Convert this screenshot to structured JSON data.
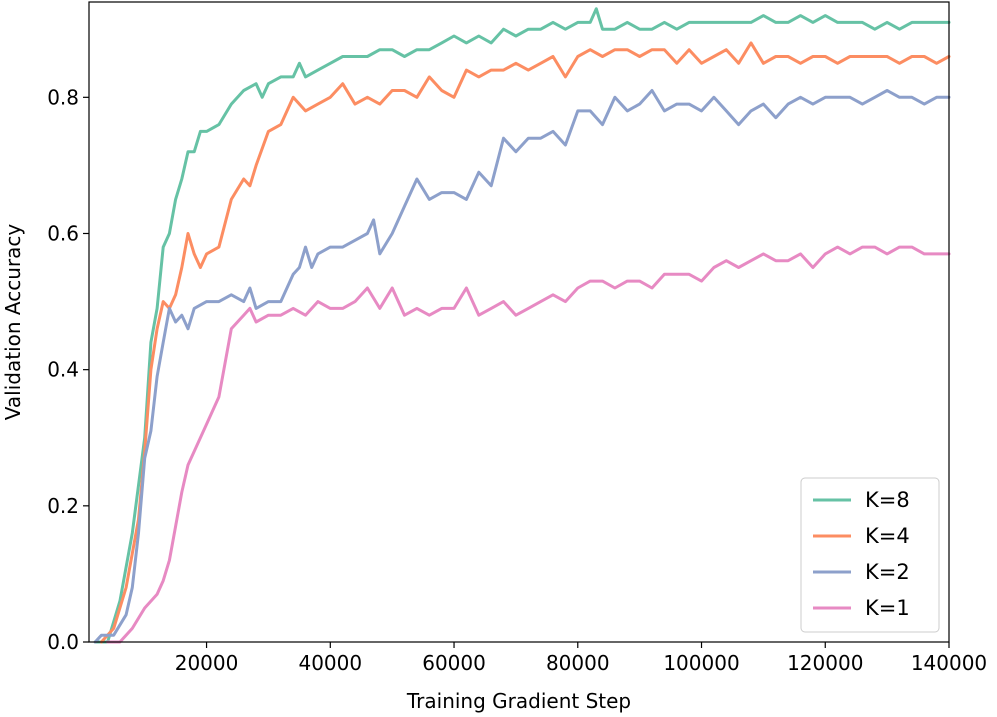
{
  "chart_data": {
    "type": "line",
    "title": "",
    "xlabel": "Training Gradient Step",
    "ylabel": "Validation Accuracy",
    "xlim": [
      1000,
      140000
    ],
    "ylim": [
      0,
      0.94
    ],
    "xticks": [
      20000,
      40000,
      60000,
      80000,
      100000,
      120000,
      140000
    ],
    "xtick_labels": [
      "20000",
      "40000",
      "60000",
      "80000",
      "100000",
      "120000",
      "140000"
    ],
    "yticks": [
      0.0,
      0.2,
      0.4,
      0.6,
      0.8
    ],
    "ytick_labels": [
      "0.0",
      "0.2",
      "0.4",
      "0.6",
      "0.8"
    ],
    "grid": false,
    "legend_position": "lower-right",
    "series": [
      {
        "name": "K=8",
        "color": "#66c2a5",
        "points": [
          [
            2000,
            0.0
          ],
          [
            4000,
            0.0
          ],
          [
            6000,
            0.06
          ],
          [
            8000,
            0.16
          ],
          [
            10000,
            0.3
          ],
          [
            11000,
            0.44
          ],
          [
            12000,
            0.49
          ],
          [
            13000,
            0.58
          ],
          [
            14000,
            0.6
          ],
          [
            15000,
            0.65
          ],
          [
            16000,
            0.68
          ],
          [
            17000,
            0.72
          ],
          [
            18000,
            0.72
          ],
          [
            19000,
            0.75
          ],
          [
            20000,
            0.75
          ],
          [
            22000,
            0.76
          ],
          [
            24000,
            0.79
          ],
          [
            26000,
            0.81
          ],
          [
            28000,
            0.82
          ],
          [
            29000,
            0.8
          ],
          [
            30000,
            0.82
          ],
          [
            32000,
            0.83
          ],
          [
            34000,
            0.83
          ],
          [
            35000,
            0.85
          ],
          [
            36000,
            0.83
          ],
          [
            38000,
            0.84
          ],
          [
            40000,
            0.85
          ],
          [
            42000,
            0.86
          ],
          [
            44000,
            0.86
          ],
          [
            46000,
            0.86
          ],
          [
            48000,
            0.87
          ],
          [
            50000,
            0.87
          ],
          [
            52000,
            0.86
          ],
          [
            54000,
            0.87
          ],
          [
            56000,
            0.87
          ],
          [
            58000,
            0.88
          ],
          [
            60000,
            0.89
          ],
          [
            62000,
            0.88
          ],
          [
            64000,
            0.89
          ],
          [
            66000,
            0.88
          ],
          [
            68000,
            0.9
          ],
          [
            70000,
            0.89
          ],
          [
            72000,
            0.9
          ],
          [
            74000,
            0.9
          ],
          [
            76000,
            0.91
          ],
          [
            78000,
            0.9
          ],
          [
            80000,
            0.91
          ],
          [
            82000,
            0.91
          ],
          [
            83000,
            0.93
          ],
          [
            84000,
            0.9
          ],
          [
            86000,
            0.9
          ],
          [
            88000,
            0.91
          ],
          [
            90000,
            0.9
          ],
          [
            92000,
            0.9
          ],
          [
            94000,
            0.91
          ],
          [
            96000,
            0.9
          ],
          [
            98000,
            0.91
          ],
          [
            100000,
            0.91
          ],
          [
            102000,
            0.91
          ],
          [
            104000,
            0.91
          ],
          [
            106000,
            0.91
          ],
          [
            108000,
            0.91
          ],
          [
            110000,
            0.92
          ],
          [
            112000,
            0.91
          ],
          [
            114000,
            0.91
          ],
          [
            116000,
            0.92
          ],
          [
            118000,
            0.91
          ],
          [
            120000,
            0.92
          ],
          [
            122000,
            0.91
          ],
          [
            124000,
            0.91
          ],
          [
            126000,
            0.91
          ],
          [
            128000,
            0.9
          ],
          [
            130000,
            0.91
          ],
          [
            132000,
            0.9
          ],
          [
            134000,
            0.91
          ],
          [
            136000,
            0.91
          ],
          [
            138000,
            0.91
          ],
          [
            140000,
            0.91
          ]
        ]
      },
      {
        "name": "K=4",
        "color": "#fc8d62",
        "points": [
          [
            3000,
            0.0
          ],
          [
            5000,
            0.02
          ],
          [
            7000,
            0.08
          ],
          [
            9000,
            0.18
          ],
          [
            10000,
            0.28
          ],
          [
            11000,
            0.4
          ],
          [
            12000,
            0.46
          ],
          [
            13000,
            0.5
          ],
          [
            14000,
            0.49
          ],
          [
            15000,
            0.51
          ],
          [
            16000,
            0.55
          ],
          [
            17000,
            0.6
          ],
          [
            18000,
            0.57
          ],
          [
            19000,
            0.55
          ],
          [
            20000,
            0.57
          ],
          [
            22000,
            0.58
          ],
          [
            24000,
            0.65
          ],
          [
            26000,
            0.68
          ],
          [
            27000,
            0.67
          ],
          [
            28000,
            0.7
          ],
          [
            30000,
            0.75
          ],
          [
            32000,
            0.76
          ],
          [
            34000,
            0.8
          ],
          [
            36000,
            0.78
          ],
          [
            38000,
            0.79
          ],
          [
            40000,
            0.8
          ],
          [
            42000,
            0.82
          ],
          [
            44000,
            0.79
          ],
          [
            46000,
            0.8
          ],
          [
            48000,
            0.79
          ],
          [
            50000,
            0.81
          ],
          [
            52000,
            0.81
          ],
          [
            54000,
            0.8
          ],
          [
            56000,
            0.83
          ],
          [
            58000,
            0.81
          ],
          [
            60000,
            0.8
          ],
          [
            62000,
            0.84
          ],
          [
            64000,
            0.83
          ],
          [
            66000,
            0.84
          ],
          [
            68000,
            0.84
          ],
          [
            70000,
            0.85
          ],
          [
            72000,
            0.84
          ],
          [
            74000,
            0.85
          ],
          [
            76000,
            0.86
          ],
          [
            78000,
            0.83
          ],
          [
            80000,
            0.86
          ],
          [
            82000,
            0.87
          ],
          [
            84000,
            0.86
          ],
          [
            86000,
            0.87
          ],
          [
            88000,
            0.87
          ],
          [
            90000,
            0.86
          ],
          [
            92000,
            0.87
          ],
          [
            94000,
            0.87
          ],
          [
            96000,
            0.85
          ],
          [
            98000,
            0.87
          ],
          [
            100000,
            0.85
          ],
          [
            102000,
            0.86
          ],
          [
            104000,
            0.87
          ],
          [
            106000,
            0.85
          ],
          [
            108000,
            0.88
          ],
          [
            110000,
            0.85
          ],
          [
            112000,
            0.86
          ],
          [
            114000,
            0.86
          ],
          [
            116000,
            0.85
          ],
          [
            118000,
            0.86
          ],
          [
            120000,
            0.86
          ],
          [
            122000,
            0.85
          ],
          [
            124000,
            0.86
          ],
          [
            126000,
            0.86
          ],
          [
            128000,
            0.86
          ],
          [
            130000,
            0.86
          ],
          [
            132000,
            0.85
          ],
          [
            134000,
            0.86
          ],
          [
            136000,
            0.86
          ],
          [
            138000,
            0.85
          ],
          [
            140000,
            0.86
          ]
        ]
      },
      {
        "name": "K=2",
        "color": "#8da0cb",
        "points": [
          [
            2000,
            0.0
          ],
          [
            3000,
            0.01
          ],
          [
            5000,
            0.01
          ],
          [
            7000,
            0.04
          ],
          [
            8000,
            0.08
          ],
          [
            9000,
            0.16
          ],
          [
            10000,
            0.27
          ],
          [
            11000,
            0.31
          ],
          [
            12000,
            0.39
          ],
          [
            13000,
            0.44
          ],
          [
            14000,
            0.49
          ],
          [
            15000,
            0.47
          ],
          [
            16000,
            0.48
          ],
          [
            17000,
            0.46
          ],
          [
            18000,
            0.49
          ],
          [
            20000,
            0.5
          ],
          [
            22000,
            0.5
          ],
          [
            24000,
            0.51
          ],
          [
            26000,
            0.5
          ],
          [
            27000,
            0.52
          ],
          [
            28000,
            0.49
          ],
          [
            30000,
            0.5
          ],
          [
            32000,
            0.5
          ],
          [
            34000,
            0.54
          ],
          [
            35000,
            0.55
          ],
          [
            36000,
            0.58
          ],
          [
            37000,
            0.55
          ],
          [
            38000,
            0.57
          ],
          [
            40000,
            0.58
          ],
          [
            42000,
            0.58
          ],
          [
            44000,
            0.59
          ],
          [
            46000,
            0.6
          ],
          [
            47000,
            0.62
          ],
          [
            48000,
            0.57
          ],
          [
            50000,
            0.6
          ],
          [
            52000,
            0.64
          ],
          [
            54000,
            0.68
          ],
          [
            56000,
            0.65
          ],
          [
            58000,
            0.66
          ],
          [
            60000,
            0.66
          ],
          [
            62000,
            0.65
          ],
          [
            64000,
            0.69
          ],
          [
            66000,
            0.67
          ],
          [
            68000,
            0.74
          ],
          [
            70000,
            0.72
          ],
          [
            72000,
            0.74
          ],
          [
            74000,
            0.74
          ],
          [
            76000,
            0.75
          ],
          [
            78000,
            0.73
          ],
          [
            80000,
            0.78
          ],
          [
            82000,
            0.78
          ],
          [
            84000,
            0.76
          ],
          [
            86000,
            0.8
          ],
          [
            88000,
            0.78
          ],
          [
            90000,
            0.79
          ],
          [
            92000,
            0.81
          ],
          [
            94000,
            0.78
          ],
          [
            96000,
            0.79
          ],
          [
            98000,
            0.79
          ],
          [
            100000,
            0.78
          ],
          [
            102000,
            0.8
          ],
          [
            104000,
            0.78
          ],
          [
            106000,
            0.76
          ],
          [
            108000,
            0.78
          ],
          [
            110000,
            0.79
          ],
          [
            112000,
            0.77
          ],
          [
            114000,
            0.79
          ],
          [
            116000,
            0.8
          ],
          [
            118000,
            0.79
          ],
          [
            120000,
            0.8
          ],
          [
            122000,
            0.8
          ],
          [
            124000,
            0.8
          ],
          [
            126000,
            0.79
          ],
          [
            128000,
            0.8
          ],
          [
            130000,
            0.81
          ],
          [
            132000,
            0.8
          ],
          [
            134000,
            0.8
          ],
          [
            136000,
            0.79
          ],
          [
            138000,
            0.8
          ],
          [
            140000,
            0.8
          ]
        ]
      },
      {
        "name": "K=1",
        "color": "#e78ac3",
        "points": [
          [
            4000,
            0.0
          ],
          [
            6000,
            0.0
          ],
          [
            8000,
            0.02
          ],
          [
            10000,
            0.05
          ],
          [
            12000,
            0.07
          ],
          [
            13000,
            0.09
          ],
          [
            14000,
            0.12
          ],
          [
            15000,
            0.17
          ],
          [
            16000,
            0.22
          ],
          [
            17000,
            0.26
          ],
          [
            18000,
            0.28
          ],
          [
            20000,
            0.32
          ],
          [
            22000,
            0.36
          ],
          [
            24000,
            0.46
          ],
          [
            26000,
            0.48
          ],
          [
            27000,
            0.49
          ],
          [
            28000,
            0.47
          ],
          [
            30000,
            0.48
          ],
          [
            32000,
            0.48
          ],
          [
            34000,
            0.49
          ],
          [
            36000,
            0.48
          ],
          [
            38000,
            0.5
          ],
          [
            40000,
            0.49
          ],
          [
            42000,
            0.49
          ],
          [
            44000,
            0.5
          ],
          [
            46000,
            0.52
          ],
          [
            48000,
            0.49
          ],
          [
            50000,
            0.52
          ],
          [
            52000,
            0.48
          ],
          [
            54000,
            0.49
          ],
          [
            56000,
            0.48
          ],
          [
            58000,
            0.49
          ],
          [
            60000,
            0.49
          ],
          [
            62000,
            0.52
          ],
          [
            64000,
            0.48
          ],
          [
            66000,
            0.49
          ],
          [
            68000,
            0.5
          ],
          [
            70000,
            0.48
          ],
          [
            72000,
            0.49
          ],
          [
            74000,
            0.5
          ],
          [
            76000,
            0.51
          ],
          [
            78000,
            0.5
          ],
          [
            80000,
            0.52
          ],
          [
            82000,
            0.53
          ],
          [
            84000,
            0.53
          ],
          [
            86000,
            0.52
          ],
          [
            88000,
            0.53
          ],
          [
            90000,
            0.53
          ],
          [
            92000,
            0.52
          ],
          [
            94000,
            0.54
          ],
          [
            96000,
            0.54
          ],
          [
            98000,
            0.54
          ],
          [
            100000,
            0.53
          ],
          [
            102000,
            0.55
          ],
          [
            104000,
            0.56
          ],
          [
            106000,
            0.55
          ],
          [
            108000,
            0.56
          ],
          [
            110000,
            0.57
          ],
          [
            112000,
            0.56
          ],
          [
            114000,
            0.56
          ],
          [
            116000,
            0.57
          ],
          [
            118000,
            0.55
          ],
          [
            120000,
            0.57
          ],
          [
            122000,
            0.58
          ],
          [
            124000,
            0.57
          ],
          [
            126000,
            0.58
          ],
          [
            128000,
            0.58
          ],
          [
            130000,
            0.57
          ],
          [
            132000,
            0.58
          ],
          [
            134000,
            0.58
          ],
          [
            136000,
            0.57
          ],
          [
            138000,
            0.57
          ],
          [
            140000,
            0.57
          ]
        ]
      }
    ]
  }
}
